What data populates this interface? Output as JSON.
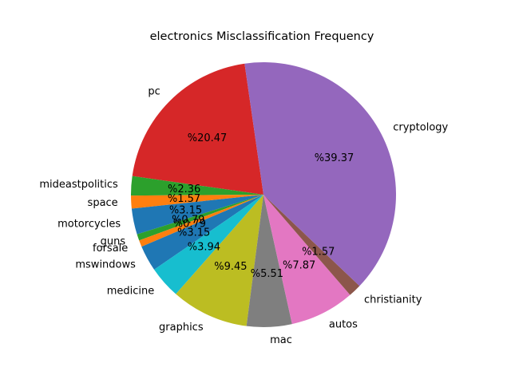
{
  "chart_data": {
    "type": "pie",
    "title": "electronics Misclassification Frequency",
    "pct_prefix": "%",
    "slices": [
      {
        "label": "pc",
        "value": 20.47,
        "pct_text": "20.47",
        "color": "#d62728"
      },
      {
        "label": "mideastpolitics",
        "value": 2.36,
        "pct_text": "2.36",
        "color": "#2ca02c"
      },
      {
        "label": "space",
        "value": 1.57,
        "pct_text": "1.57",
        "color": "#ff7f0e"
      },
      {
        "label": "motorcycles",
        "value": 3.15,
        "pct_text": "3.15",
        "color": "#1f77b4"
      },
      {
        "label": "guns",
        "value": 0.79,
        "pct_text": "0.79",
        "color": "#2ca02c"
      },
      {
        "label": "forsale",
        "value": 0.79,
        "pct_text": "0.79",
        "color": "#ff7f0e"
      },
      {
        "label": "mswindows",
        "value": 3.15,
        "pct_text": "3.15",
        "color": "#1f77b4"
      },
      {
        "label": "medicine",
        "value": 3.94,
        "pct_text": "3.94",
        "color": "#17becf"
      },
      {
        "label": "graphics",
        "value": 9.45,
        "pct_text": "9.45",
        "color": "#bcbd22"
      },
      {
        "label": "mac",
        "value": 5.51,
        "pct_text": "5.51",
        "color": "#7f7f7f"
      },
      {
        "label": "autos",
        "value": 7.87,
        "pct_text": "7.87",
        "color": "#e377c2"
      },
      {
        "label": "christianity",
        "value": 1.57,
        "pct_text": "1.57",
        "color": "#8c564b"
      },
      {
        "label": "cryptology",
        "value": 39.37,
        "pct_text": "39.37",
        "color": "#9467bd"
      }
    ]
  }
}
